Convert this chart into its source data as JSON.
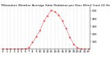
{
  "title": "Milwaukee Weather Average Solar Radiation per Hour W/m2 (Last 24 Hours)",
  "hours": [
    0,
    1,
    2,
    3,
    4,
    5,
    6,
    7,
    8,
    9,
    10,
    11,
    12,
    13,
    14,
    15,
    16,
    17,
    18,
    19,
    20,
    21,
    22,
    23
  ],
  "values": [
    0,
    0,
    0,
    0,
    0,
    2,
    5,
    20,
    90,
    170,
    250,
    370,
    440,
    510,
    490,
    450,
    370,
    270,
    160,
    70,
    18,
    2,
    0,
    0
  ],
  "x_labels": [
    "0",
    "1",
    "2",
    "3",
    "4",
    "5",
    "6",
    "7",
    "8",
    "9",
    "10",
    "11",
    "12",
    "13",
    "14",
    "15",
    "16",
    "17",
    "18",
    "19",
    "20",
    "21",
    "22",
    "23"
  ],
  "line_color": "#ff0000",
  "bg_color": "#ffffff",
  "grid_color": "#888888",
  "ylim": [
    0,
    550
  ],
  "yticks": [
    100,
    200,
    300,
    400,
    500
  ],
  "title_fontsize": 3.2,
  "tick_fontsize": 2.8
}
